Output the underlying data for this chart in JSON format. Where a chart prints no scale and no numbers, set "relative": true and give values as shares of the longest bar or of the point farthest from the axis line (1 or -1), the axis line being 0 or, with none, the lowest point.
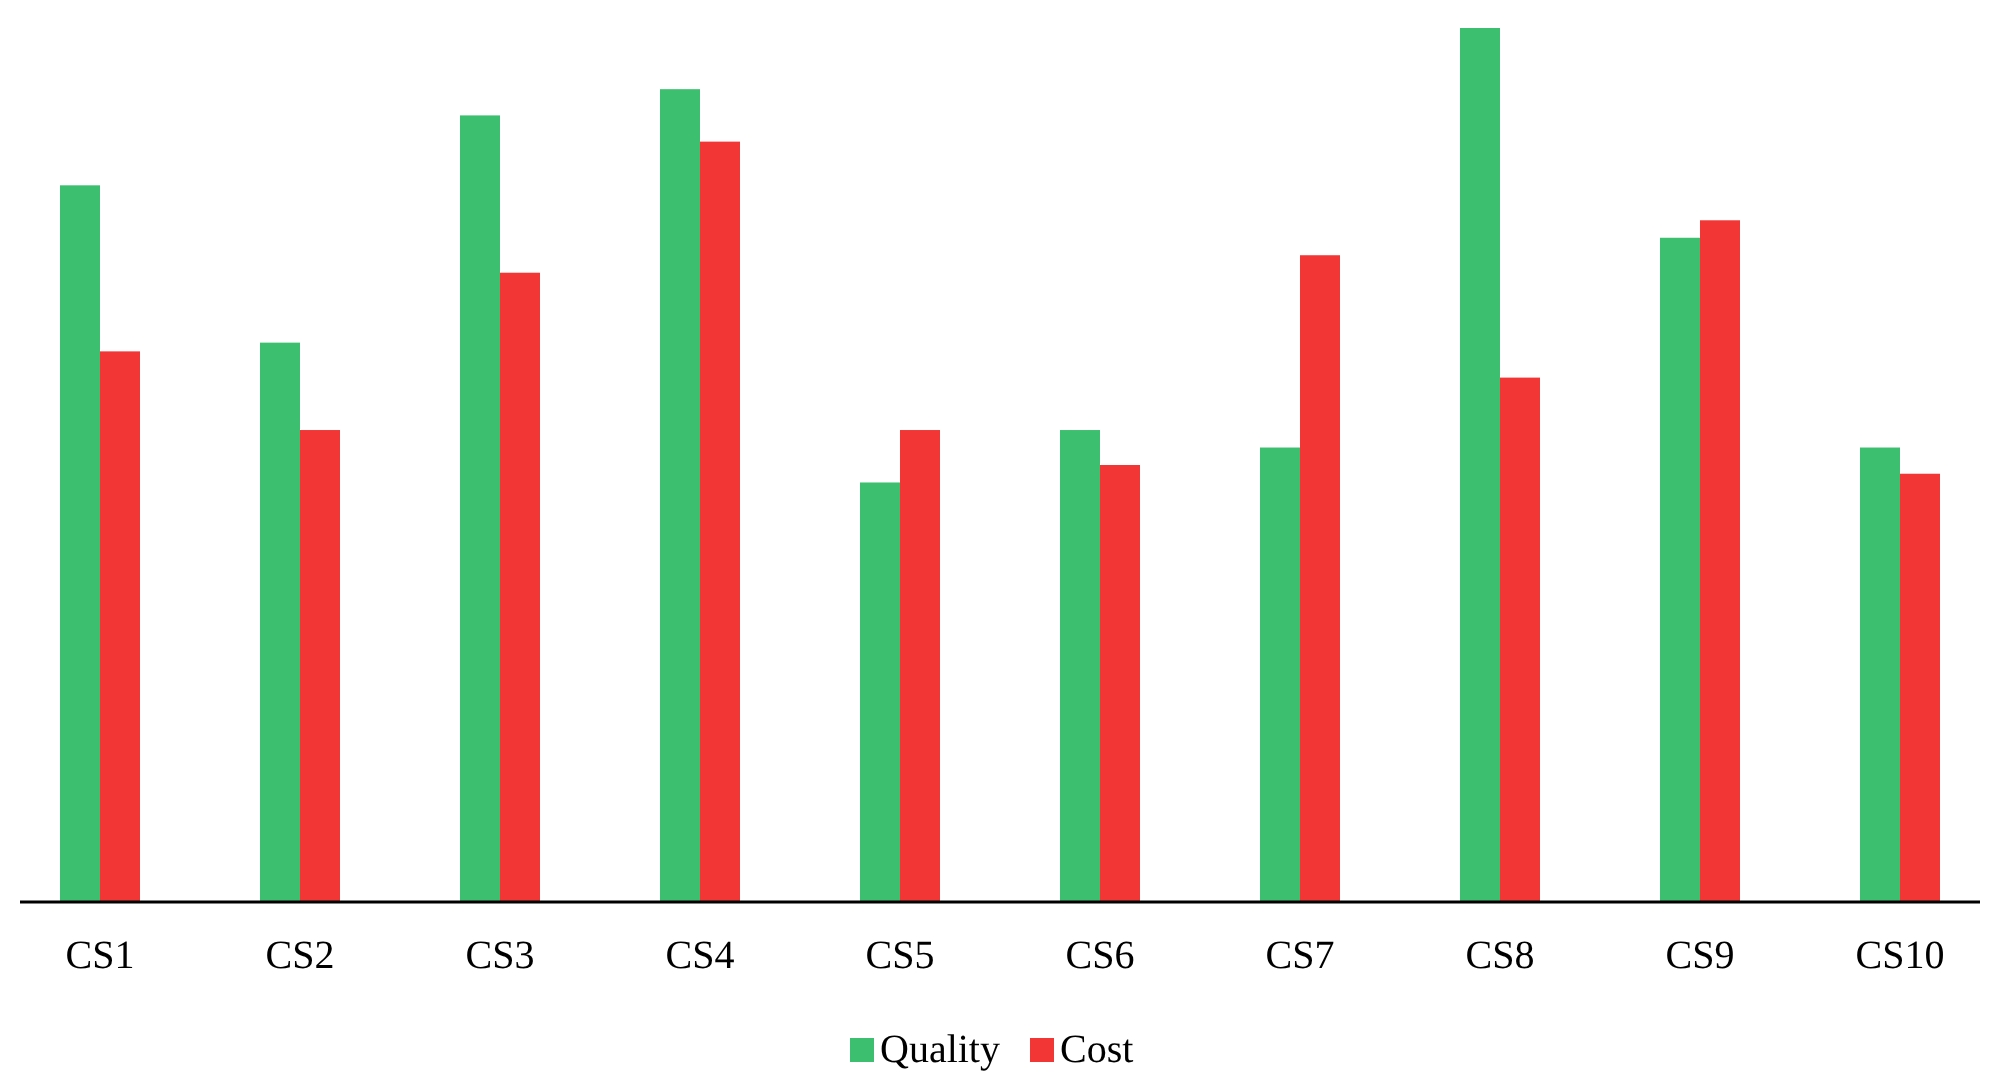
{
  "chart_data": {
    "type": "bar",
    "relative": true,
    "categories": [
      "CS1",
      "CS2",
      "CS3",
      "CS4",
      "CS5",
      "CS6",
      "CS7",
      "CS8",
      "CS9",
      "CS10"
    ],
    "legend": "bottom",
    "series": [
      {
        "name": "Quality",
        "color": "#3cbf6e",
        "values": [
          0.82,
          0.64,
          0.9,
          0.93,
          0.48,
          0.54,
          0.52,
          1,
          0.76,
          0.52
        ]
      },
      {
        "name": "Cost",
        "color": "#f23535",
        "values": [
          0.63,
          0.54,
          0.72,
          0.87,
          0.54,
          0.5,
          0.74,
          0.6,
          0.78,
          0.49
        ]
      }
    ]
  }
}
